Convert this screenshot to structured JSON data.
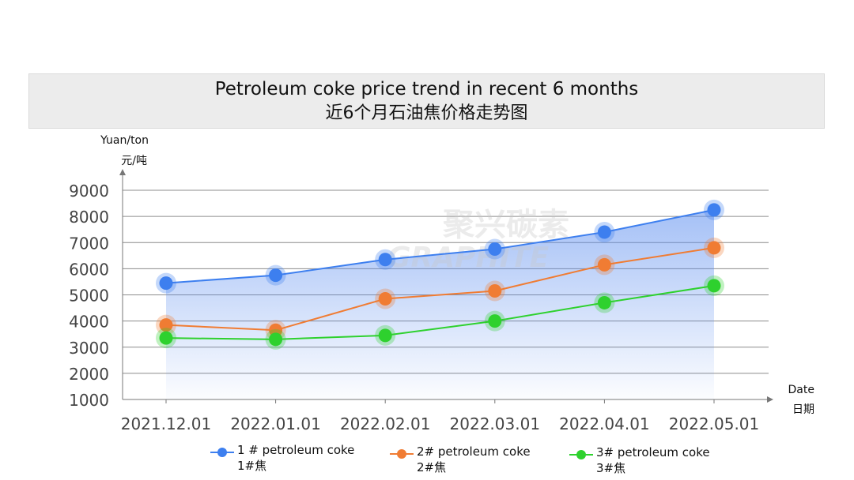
{
  "title": {
    "line1": "Petroleum coke price trend in recent 6 months",
    "line2": "近6个月石油焦价格走势图"
  },
  "watermark": {
    "text1": "聚兴碳素",
    "text2": "GRAPHITE"
  },
  "chart_data": {
    "type": "line",
    "categories": [
      "2021.12.01",
      "2022.01.01",
      "2022.02.01",
      "2022.03.01",
      "2022.04.01",
      "2022.05.01"
    ],
    "ylabel_en": "Yuan/ton",
    "ylabel_zh": "元/吨",
    "xlabel_en": "Date",
    "xlabel_zh": "日期",
    "ylim": [
      1000,
      9000
    ],
    "yticks": [
      1000,
      2000,
      3000,
      4000,
      5000,
      6000,
      7000,
      8000,
      9000
    ],
    "grid": true,
    "legend_position": "bottom",
    "series": [
      {
        "name": "1 # petroleum coke",
        "name_zh": "1#焦",
        "color": "#3d7fef",
        "values": [
          5450,
          5750,
          6350,
          6750,
          7400,
          8250
        ]
      },
      {
        "name": "2# petroleum coke",
        "name_zh": "2#焦",
        "color": "#f07c33",
        "values": [
          3850,
          3650,
          4850,
          5150,
          6150,
          6800
        ]
      },
      {
        "name": "3# petroleum coke",
        "name_zh": "3#焦",
        "color": "#2ed12e",
        "values": [
          3350,
          3300,
          3450,
          4000,
          4700,
          5350
        ]
      }
    ]
  }
}
